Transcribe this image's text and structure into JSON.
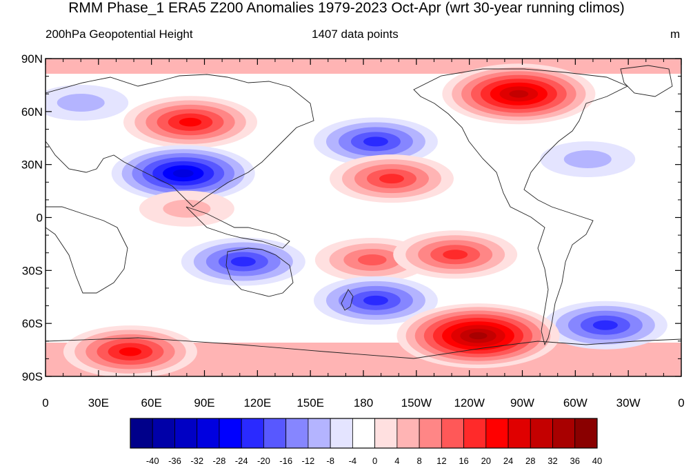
{
  "title": "RMM Phase_1 ERA5 Z200 Anomalies 1979-2023 Oct-Apr (wrt 30-year running climos)",
  "subtitle_left": "200hPa Geopotential Height",
  "subtitle_center": "1407 data points",
  "subtitle_right": "m",
  "map": {
    "lon_range": [
      0,
      360
    ],
    "lat_range": [
      -90,
      90
    ],
    "x_tick_labels": [
      "0",
      "30E",
      "60E",
      "90E",
      "120E",
      "150E",
      "180",
      "150W",
      "120W",
      "90W",
      "60W",
      "30W",
      "0"
    ],
    "y_tick_labels": [
      "90N",
      "60N",
      "30N",
      "0",
      "30S",
      "60S",
      "90S"
    ]
  },
  "colorbar": {
    "levels": [
      -40,
      -36,
      -32,
      -28,
      -24,
      -20,
      -16,
      -12,
      -8,
      -4,
      0,
      4,
      8,
      12,
      16,
      20,
      24,
      28,
      32,
      36,
      40
    ],
    "colors": [
      "#00008a",
      "#0000a8",
      "#0000c4",
      "#0000e0",
      "#0000ff",
      "#2a2aff",
      "#5858ff",
      "#8686ff",
      "#b4b4ff",
      "#e4e4ff",
      "#ffffff",
      "#ffffff",
      "#ffe0e0",
      "#ffb4b4",
      "#ff8686",
      "#ff5858",
      "#ff2a2a",
      "#ff0000",
      "#e00000",
      "#c40000",
      "#a80000",
      "#8a0000"
    ]
  },
  "anomaly_centers": [
    {
      "lon": 82,
      "lat": 54,
      "value": 24
    },
    {
      "lon": 78,
      "lat": 25,
      "value": -28
    },
    {
      "lon": 20,
      "lat": 65,
      "value": -8
    },
    {
      "lon": 187,
      "lat": 43,
      "value": -20
    },
    {
      "lon": 196,
      "lat": 22,
      "value": 20
    },
    {
      "lon": 268,
      "lat": 70,
      "value": 32
    },
    {
      "lon": 307,
      "lat": 33,
      "value": -8
    },
    {
      "lon": 80,
      "lat": 5,
      "value": 8
    },
    {
      "lon": 112,
      "lat": -25,
      "value": -20
    },
    {
      "lon": 185,
      "lat": -24,
      "value": 16
    },
    {
      "lon": 232,
      "lat": -21,
      "value": 20
    },
    {
      "lon": 187,
      "lat": -47,
      "value": -20
    },
    {
      "lon": 317,
      "lat": -61,
      "value": -20
    },
    {
      "lon": 245,
      "lat": -67,
      "value": 36
    },
    {
      "lon": 48,
      "lat": -76,
      "value": 24
    }
  ]
}
